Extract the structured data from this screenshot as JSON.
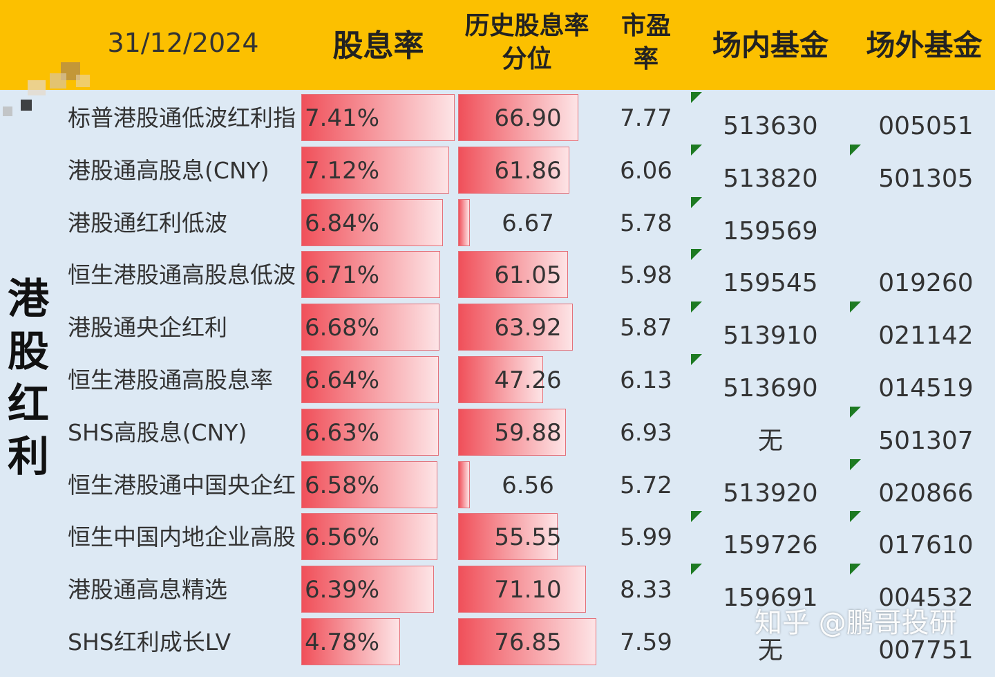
{
  "header": {
    "date": "31/12/2024",
    "dividend_yield": "股息率",
    "hist_pct_line1": "历史股息率",
    "hist_pct_line2": "分位",
    "pe_line1": "市盈",
    "pe_line2": "率",
    "onsite_fund": "场内基金",
    "offsite_fund": "场外基金"
  },
  "group_label": [
    "港",
    "股",
    "红",
    "利"
  ],
  "rows": [
    {
      "name": "标普港股通低波红利指",
      "yield": "7.41%",
      "yield_value": 7.41,
      "percentile": "66.90",
      "percentile_value": 66.9,
      "pe": "7.77",
      "onsite": "513630",
      "offsite": "005051",
      "onsite_flag": true,
      "offsite_flag": false
    },
    {
      "name": "港股通高股息(CNY)",
      "yield": "7.12%",
      "yield_value": 7.12,
      "percentile": "61.86",
      "percentile_value": 61.86,
      "pe": "6.06",
      "onsite": "513820",
      "offsite": "501305",
      "onsite_flag": true,
      "offsite_flag": true
    },
    {
      "name": "港股通红利低波",
      "yield": "6.84%",
      "yield_value": 6.84,
      "percentile": "6.67",
      "percentile_value": 6.67,
      "pe": "5.78",
      "onsite": "159569",
      "offsite": "",
      "onsite_flag": true,
      "offsite_flag": false
    },
    {
      "name": "恒生港股通高股息低波",
      "yield": "6.71%",
      "yield_value": 6.71,
      "percentile": "61.05",
      "percentile_value": 61.05,
      "pe": "5.98",
      "onsite": "159545",
      "offsite": "019260",
      "onsite_flag": true,
      "offsite_flag": false
    },
    {
      "name": "港股通央企红利",
      "yield": "6.68%",
      "yield_value": 6.68,
      "percentile": "63.92",
      "percentile_value": 63.92,
      "pe": "5.87",
      "onsite": "513910",
      "offsite": "021142",
      "onsite_flag": true,
      "offsite_flag": true
    },
    {
      "name": "恒生港股通高股息率",
      "yield": "6.64%",
      "yield_value": 6.64,
      "percentile": "47.26",
      "percentile_value": 47.26,
      "pe": "6.13",
      "onsite": "513690",
      "offsite": "014519",
      "onsite_flag": true,
      "offsite_flag": false
    },
    {
      "name": "SHS高股息(CNY)",
      "yield": "6.63%",
      "yield_value": 6.63,
      "percentile": "59.88",
      "percentile_value": 59.88,
      "pe": "6.93",
      "onsite": "无",
      "offsite": "501307",
      "onsite_flag": false,
      "offsite_flag": true
    },
    {
      "name": "恒生港股通中国央企红",
      "yield": "6.58%",
      "yield_value": 6.58,
      "percentile": "6.56",
      "percentile_value": 6.56,
      "pe": "5.72",
      "onsite": "513920",
      "offsite": "020866",
      "onsite_flag": false,
      "offsite_flag": true
    },
    {
      "name": "恒生中国内地企业高股",
      "yield": "6.56%",
      "yield_value": 6.56,
      "percentile": "55.55",
      "percentile_value": 55.55,
      "pe": "5.99",
      "onsite": "159726",
      "offsite": "017610",
      "onsite_flag": true,
      "offsite_flag": true
    },
    {
      "name": "港股通高息精选",
      "yield": "6.39%",
      "yield_value": 6.39,
      "percentile": "71.10",
      "percentile_value": 71.1,
      "pe": "8.33",
      "onsite": "159691",
      "offsite": "004532",
      "onsite_flag": true,
      "offsite_flag": true
    },
    {
      "name": "SHS红利成长LV",
      "yield": "4.78%",
      "yield_value": 4.78,
      "percentile": "76.85",
      "percentile_value": 76.85,
      "pe": "7.59",
      "onsite": "无",
      "offsite": "007751",
      "onsite_flag": false,
      "offsite_flag": false
    }
  ],
  "watermark": "知乎 @鹏哥投研",
  "colors": {
    "header_bg": "#fcc000",
    "body_bg": "#dde9f4",
    "bar_red": "#f0505a",
    "flag_green": "#1d7a22"
  }
}
